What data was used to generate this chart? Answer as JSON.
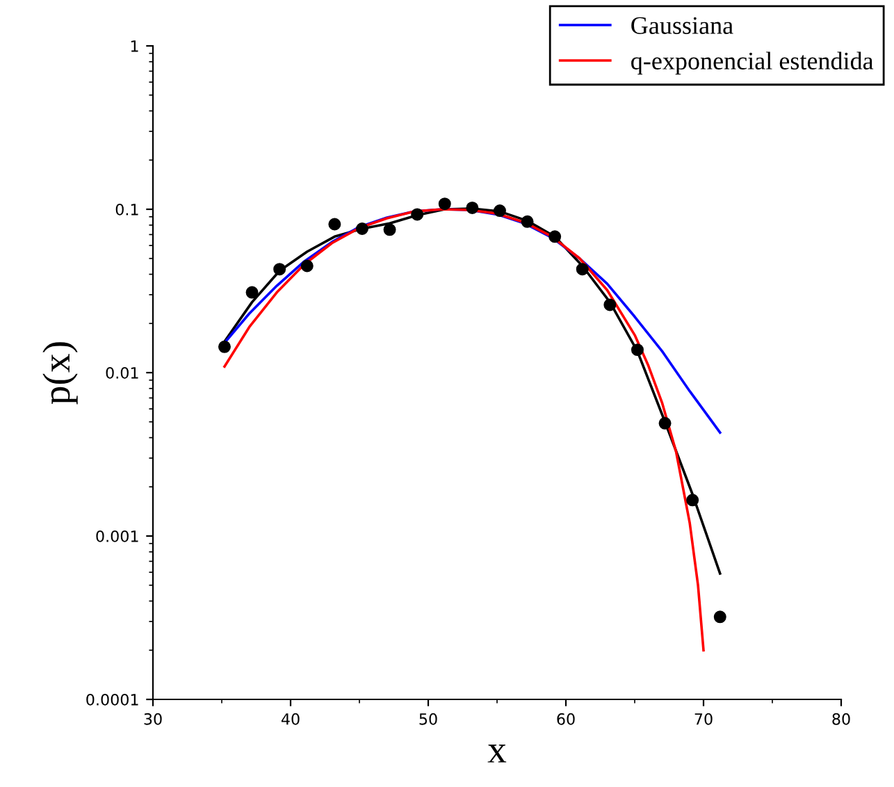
{
  "chart_data": {
    "type": "line",
    "xlabel": "x",
    "ylabel": "p(x)",
    "log": "y",
    "legend": "top right",
    "xlim": [
      30,
      80
    ],
    "xticks": [
      30,
      40,
      50,
      60,
      70,
      80
    ],
    "ylim": [
      0.0001,
      1
    ],
    "yticks": [
      {
        "value": 0.0001,
        "label": "0.0001"
      },
      {
        "value": 0.001,
        "label": "0.001"
      },
      {
        "value": 0.01,
        "label": "0.01"
      },
      {
        "value": 0.1,
        "label": "0.1"
      },
      {
        "value": 1,
        "label": "1"
      }
    ],
    "series": [
      {
        "type": "scatter",
        "marker": "circle",
        "color": "#000000",
        "x": [
          35.2,
          37.2,
          39.2,
          41.2,
          43.2,
          45.2,
          47.2,
          49.2,
          51.2,
          53.2,
          55.2,
          57.2,
          59.2,
          61.2,
          63.2,
          65.2,
          67.2,
          69.2,
          71.2
        ],
        "values": [
          0.0144,
          0.031,
          0.043,
          0.045,
          0.081,
          0.076,
          0.075,
          0.093,
          0.108,
          0.102,
          0.098,
          0.084,
          0.068,
          0.043,
          0.026,
          0.0138,
          0.0049,
          0.00166,
          0.00032
        ]
      },
      {
        "color": "#000000",
        "x": [
          35.2,
          37.2,
          39.2,
          41.2,
          43.2,
          45.2,
          47.2,
          49.2,
          51.2,
          53.2,
          55.2,
          57.2,
          59.2,
          61.2,
          63.2,
          65.2,
          67.2,
          69.2,
          71.2
        ],
        "values": [
          0.0155,
          0.027,
          0.042,
          0.055,
          0.068,
          0.076,
          0.082,
          0.092,
          0.1,
          0.101,
          0.097,
          0.085,
          0.068,
          0.045,
          0.027,
          0.0135,
          0.005,
          0.0018,
          0.00059
        ]
      },
      {
        "name": "Gaussiana",
        "color": "#0000ff",
        "x": [
          35.2,
          37,
          39,
          41,
          43,
          45,
          47,
          49,
          51,
          53,
          55,
          57,
          59,
          61,
          63,
          65,
          67,
          69,
          71.2
        ],
        "values": [
          0.0152,
          0.023,
          0.034,
          0.048,
          0.063,
          0.078,
          0.089,
          0.097,
          0.1,
          0.099,
          0.093,
          0.082,
          0.067,
          0.05,
          0.035,
          0.022,
          0.0135,
          0.0077,
          0.0043
        ]
      },
      {
        "name": "q-exponencial estendida",
        "color": "#ff0000",
        "x": [
          35.2,
          37,
          39,
          41,
          43,
          45,
          47,
          49,
          51,
          53,
          55,
          57,
          59,
          61,
          63,
          65,
          66,
          67,
          68,
          69,
          69.6,
          70
        ],
        "values": [
          0.0109,
          0.019,
          0.031,
          0.046,
          0.062,
          0.077,
          0.088,
          0.097,
          0.1,
          0.099,
          0.094,
          0.083,
          0.068,
          0.05,
          0.032,
          0.017,
          0.011,
          0.0065,
          0.0033,
          0.0012,
          0.0005,
          0.0002
        ]
      }
    ]
  }
}
